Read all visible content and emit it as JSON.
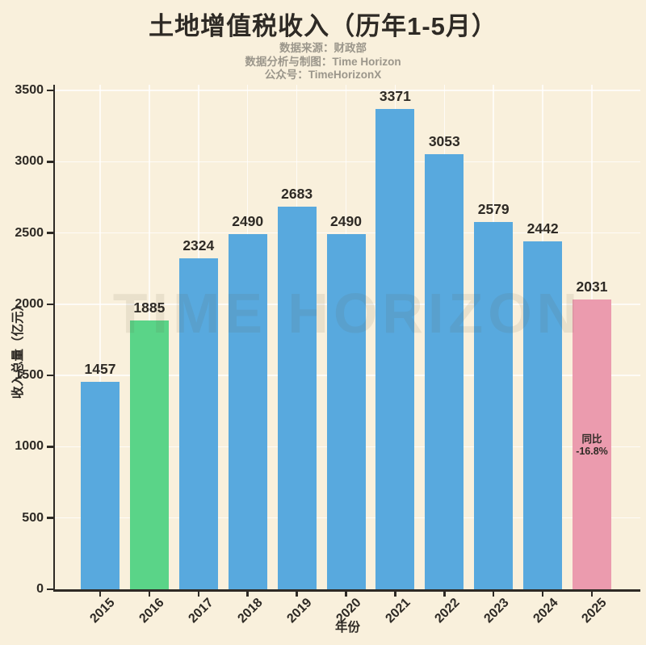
{
  "title": "土地增值税收入（历年1-5月）",
  "subtitle": {
    "lines": [
      "数据来源：财政部",
      "数据分析与制图：Time Horizon",
      "公众号：TimeHorizonX"
    ]
  },
  "watermark": "TIME HORIZON",
  "chart_data": {
    "type": "bar",
    "title": "土地增值税收入（历年1-5月）",
    "categories": [
      "2015",
      "2016",
      "2017",
      "2018",
      "2019",
      "2020",
      "2021",
      "2022",
      "2023",
      "2024",
      "2025"
    ],
    "values": [
      1457,
      1885,
      2324,
      2490,
      2683,
      2490,
      3371,
      3053,
      2579,
      2442,
      2031
    ],
    "bar_color_keys": [
      "blue",
      "green",
      "blue",
      "blue",
      "blue",
      "blue",
      "blue",
      "blue",
      "blue",
      "blue",
      "pink"
    ],
    "xlabel": "年份",
    "ylabel": "收入总量（亿元）",
    "ylim": [
      0,
      3500
    ],
    "yticks": [
      0,
      500,
      1000,
      1500,
      2000,
      2500,
      3000,
      3500
    ],
    "grid": true,
    "legend": "none",
    "annotation": {
      "bar_index": 10,
      "lines": [
        "同比",
        "-16.8%"
      ]
    }
  },
  "colors": {
    "background": "#F9F0DC",
    "text": "#2E2A25",
    "subtitle_text": "#9B968B",
    "bar_blue": "#58A9DE",
    "bar_green": "#5AD488",
    "bar_pink": "#EB9BAE",
    "gridline": "rgba(255,255,255,0.75)",
    "watermark_text": "rgba(100,85,60,0.10)",
    "axis": "#2E2A25"
  }
}
